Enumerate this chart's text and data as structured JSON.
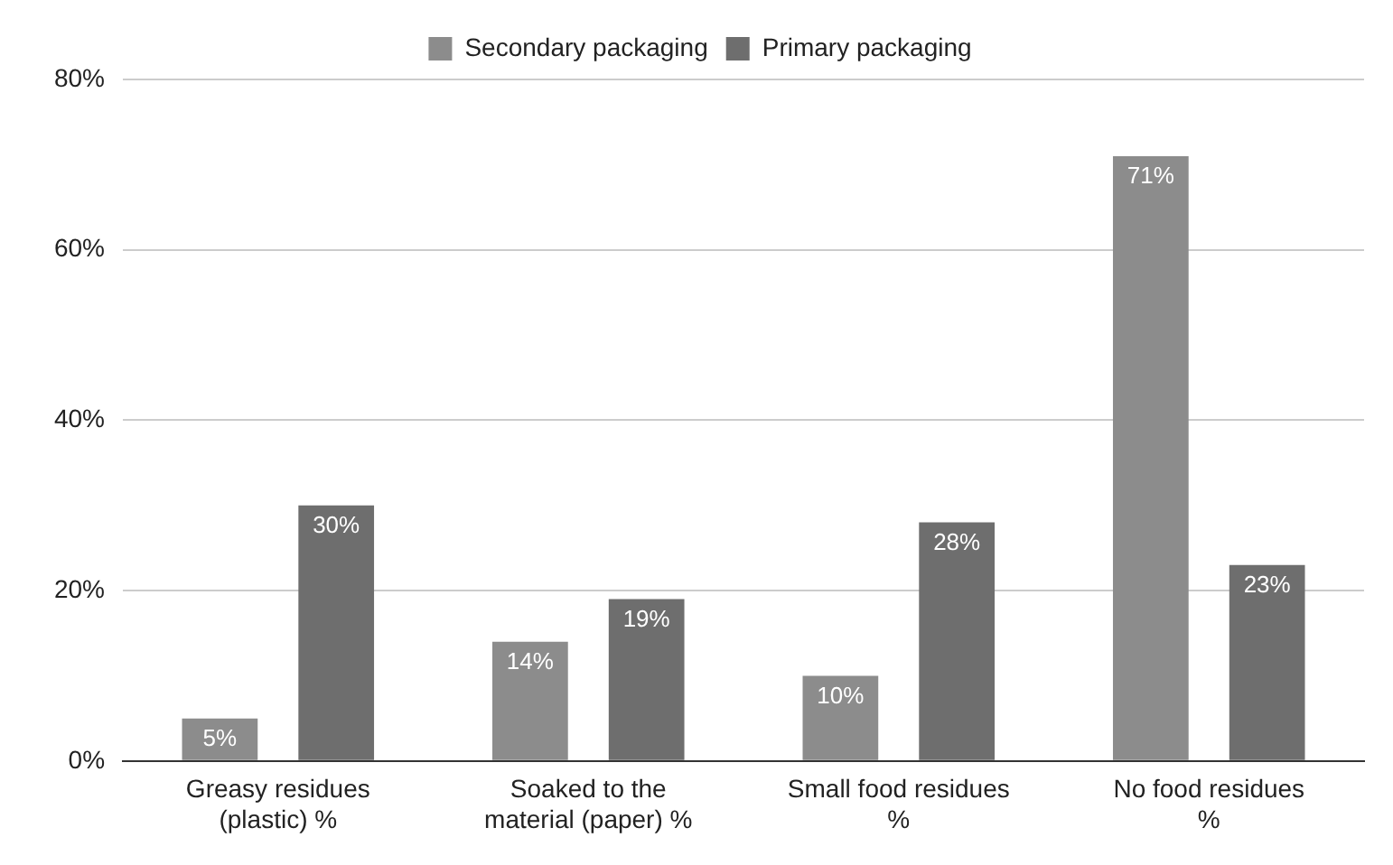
{
  "chart_data": {
    "type": "bar",
    "categories": [
      "Greasy residues\n(plastic) %",
      "Soaked to the\nmaterial (paper) %",
      "Small food residues\n%",
      "No food residues\n%"
    ],
    "series": [
      {
        "name": "Secondary packaging",
        "color": "#8c8c8c",
        "values": [
          5,
          14,
          10,
          71
        ],
        "value_labels": [
          "5%",
          "14%",
          "10%",
          "71%"
        ]
      },
      {
        "name": "Primary packaging",
        "color": "#6e6e6e",
        "values": [
          30,
          19,
          28,
          23
        ],
        "value_labels": [
          "30%",
          "19%",
          "28%",
          "23%"
        ]
      }
    ],
    "ylim": [
      0,
      80
    ],
    "yticks": [
      {
        "value": 0,
        "label": "0%"
      },
      {
        "value": 20,
        "label": "20%"
      },
      {
        "value": 40,
        "label": "40%"
      },
      {
        "value": 60,
        "label": "60%"
      },
      {
        "value": 80,
        "label": "80%"
      }
    ],
    "grid": "y",
    "legend": "top"
  }
}
